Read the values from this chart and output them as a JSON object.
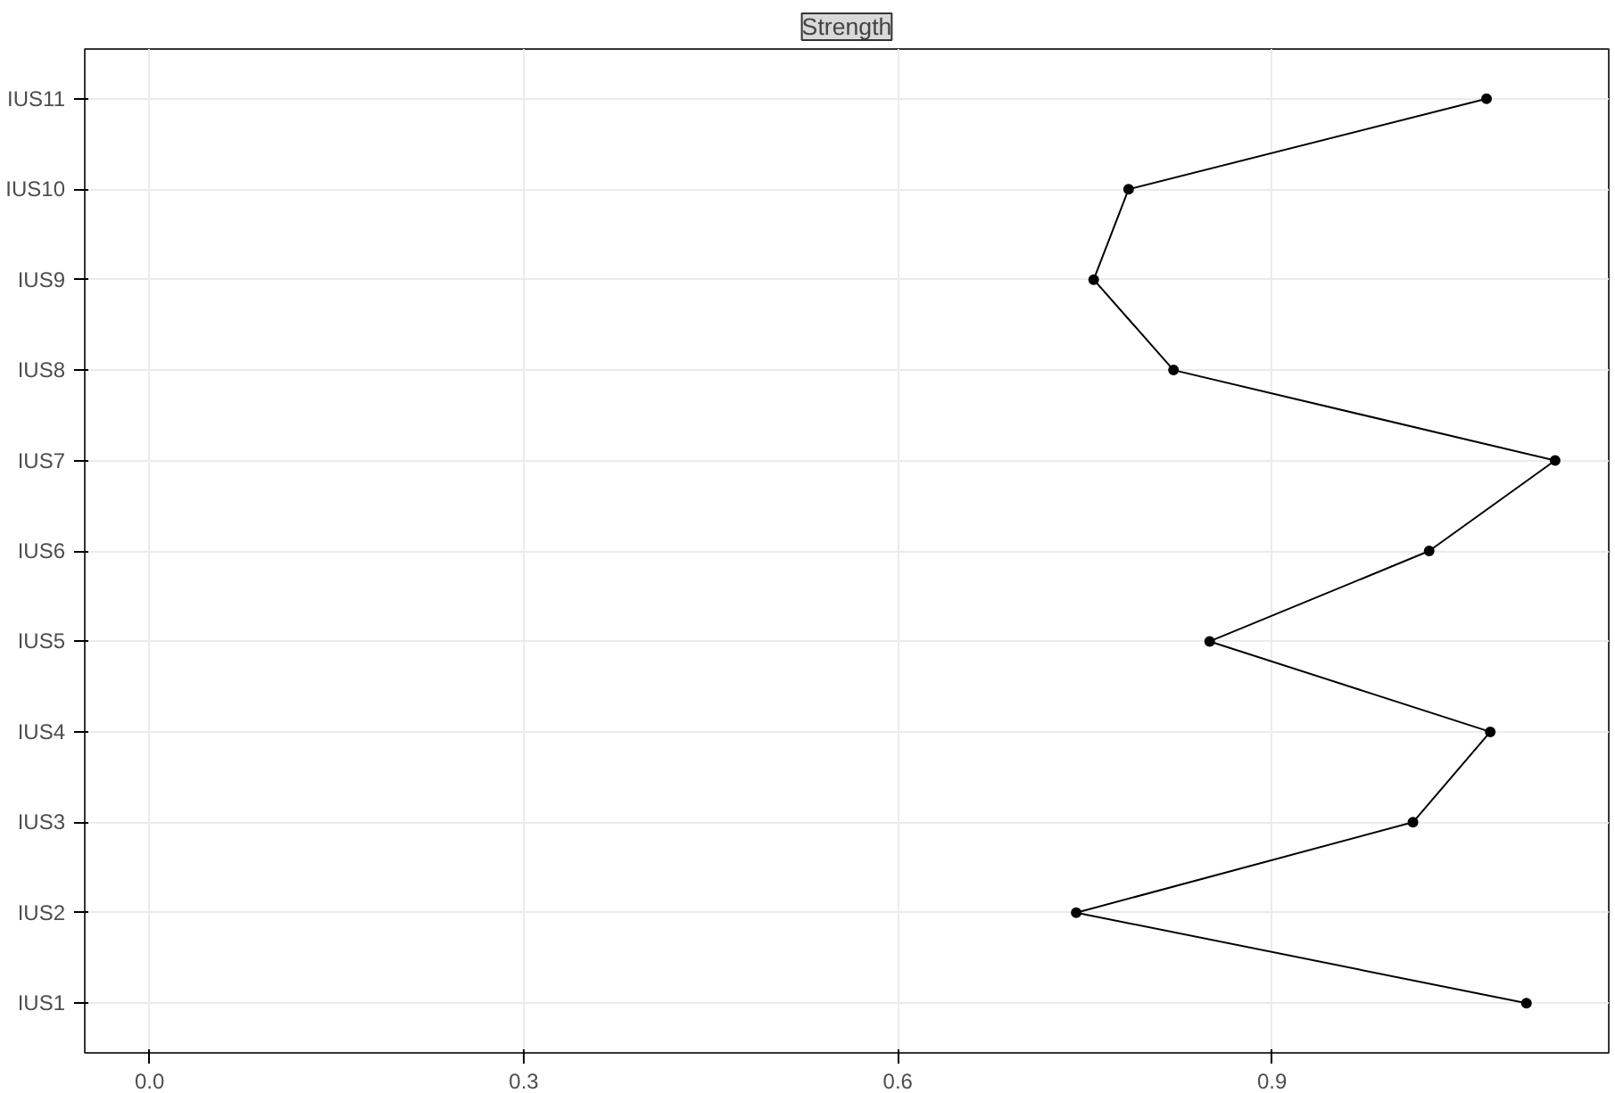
{
  "chart_data": {
    "type": "line",
    "orientation": "horizontal",
    "title": "Strength",
    "categories": [
      "IUS11",
      "IUS10",
      "IUS9",
      "IUS8",
      "IUS7",
      "IUS6",
      "IUS5",
      "IUS4",
      "IUS3",
      "IUS2",
      "IUS1"
    ],
    "series": [
      {
        "color": "#000000",
        "values": [
          1.072,
          0.785,
          0.757,
          0.821,
          1.127,
          1.026,
          0.85,
          1.075,
          1.013,
          0.743,
          1.104
        ]
      }
    ],
    "xlim": [
      -0.052,
      1.17
    ],
    "xticks": [
      {
        "value": 0,
        "label": "0.0"
      },
      0.3,
      0.6,
      0.9
    ],
    "grid": true,
    "marker": "circle",
    "line_style": "solid"
  }
}
